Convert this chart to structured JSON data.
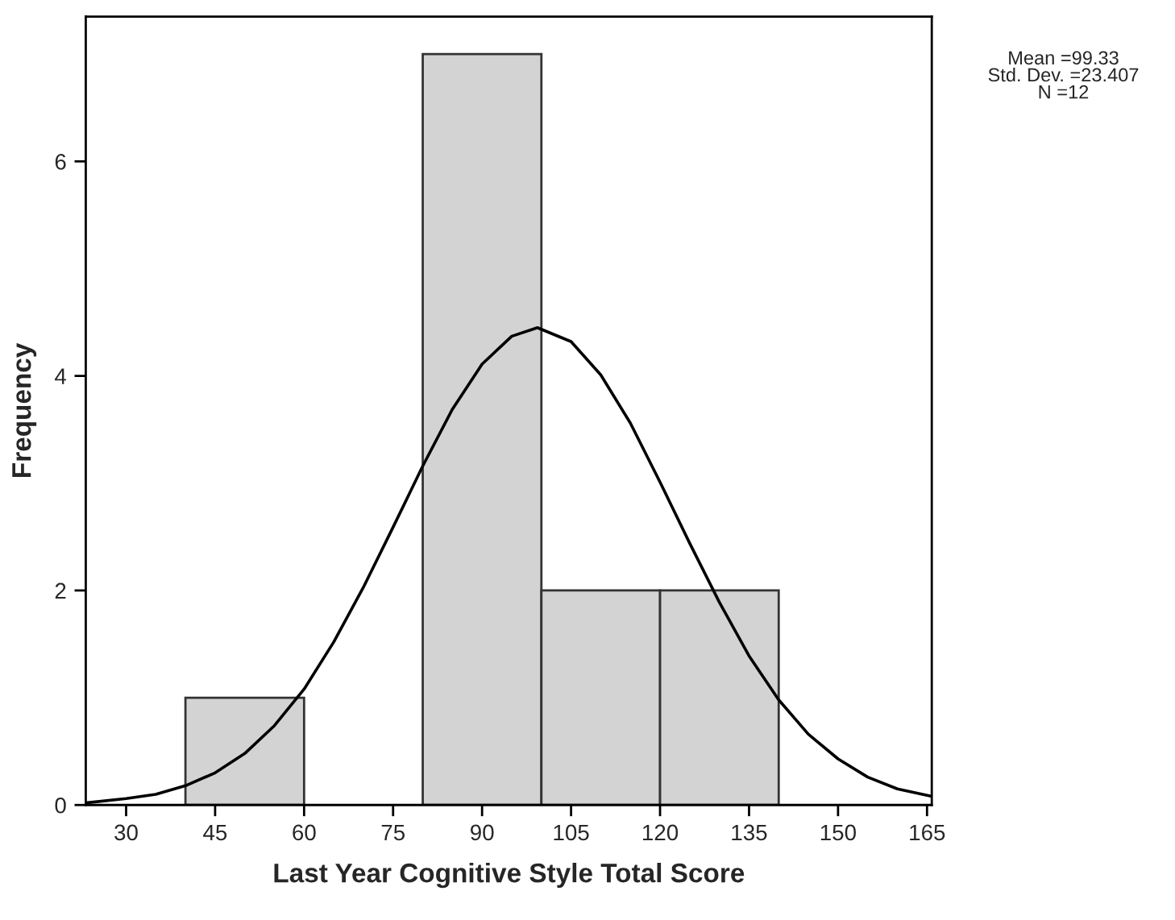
{
  "chart_data": {
    "type": "histogram",
    "xlabel": "Last Year Cognitive Style Total Score",
    "ylabel": "Frequency",
    "bins": [
      40,
      60,
      80,
      100,
      120,
      140
    ],
    "values": [
      1,
      0,
      7,
      2,
      2
    ],
    "color": "#d3d3d3",
    "series": [
      {
        "type": "line",
        "color": "#000000",
        "x": [
          23.2,
          30,
          35,
          40,
          45,
          50,
          55,
          60,
          65,
          70,
          75,
          80,
          85,
          90,
          95,
          99.33,
          105,
          110,
          115,
          120,
          125,
          130,
          135,
          140,
          145,
          150,
          155,
          160,
          165.8
        ],
        "values": [
          0.02,
          0.06,
          0.1,
          0.18,
          0.3,
          0.48,
          0.74,
          1.08,
          1.52,
          2.03,
          2.59,
          3.16,
          3.69,
          4.11,
          4.37,
          4.45,
          4.32,
          4.01,
          3.56,
          3.01,
          2.44,
          1.89,
          1.39,
          0.98,
          0.66,
          0.43,
          0.26,
          0.15,
          0.08
        ]
      }
    ],
    "xlim": [
      23.2,
      165.8
    ],
    "xticks": [
      30,
      45,
      60,
      75,
      90,
      105,
      120,
      135,
      150,
      165
    ],
    "ylim": [
      0,
      7.35
    ],
    "yticks": [
      0,
      2,
      4,
      6
    ],
    "annotations": [
      "Mean =99.33\nStd. Dev. =23.407\nN =12"
    ],
    "grid": false,
    "legend": false
  }
}
